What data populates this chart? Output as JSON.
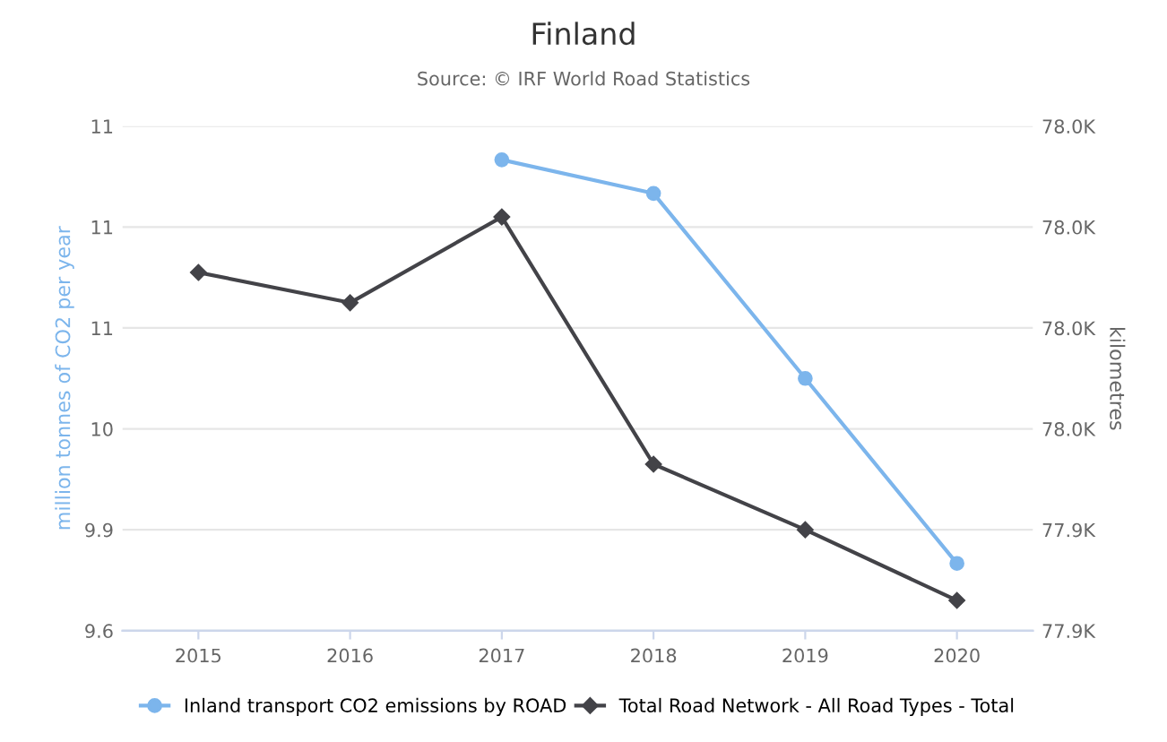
{
  "chart_data": {
    "type": "line",
    "title": "Finland",
    "subtitle": "Source: © IRF World Road Statistics",
    "ylabel": "million tonnes of CO2 per year",
    "y2label": "kilometres",
    "categories": [
      "2015",
      "2016",
      "2017",
      "2018",
      "2019",
      "2020"
    ],
    "series": [
      {
        "name": "Inland transport CO2 emissions by ROAD",
        "color": "#7cb5ec",
        "marker": "circle",
        "values": [
          null,
          null,
          11.0,
          10.9,
          10.35,
          9.8
        ]
      },
      {
        "name": "Total Road Network - All Road Types - Total",
        "color": "#434348",
        "marker": "diamond",
        "axis": "y2",
        "values": [
          77991,
          77985,
          78002,
          77953,
          77940,
          77926
        ]
      }
    ],
    "ylim": [
      9.6,
      11.1
    ],
    "yticks": [
      9.6,
      9.9,
      {
        "value": 10.2,
        "label": "10"
      },
      {
        "value": 10.5,
        "label": "11"
      },
      {
        "value": 10.8,
        "label": "11"
      },
      {
        "value": 11.1,
        "label": "11"
      }
    ],
    "y2lim": [
      77920,
      78020
    ],
    "y2ticks": [
      {
        "value": 77920,
        "label": "77.9K"
      },
      {
        "value": 77940,
        "label": "77.9K"
      },
      {
        "value": 77960,
        "label": "78.0K"
      },
      {
        "value": 77980,
        "label": "78.0K"
      },
      {
        "value": 78000,
        "label": "78.0K"
      },
      {
        "value": 78020,
        "label": "78.0K"
      }
    ],
    "grid": "y",
    "legend": "bottom"
  }
}
